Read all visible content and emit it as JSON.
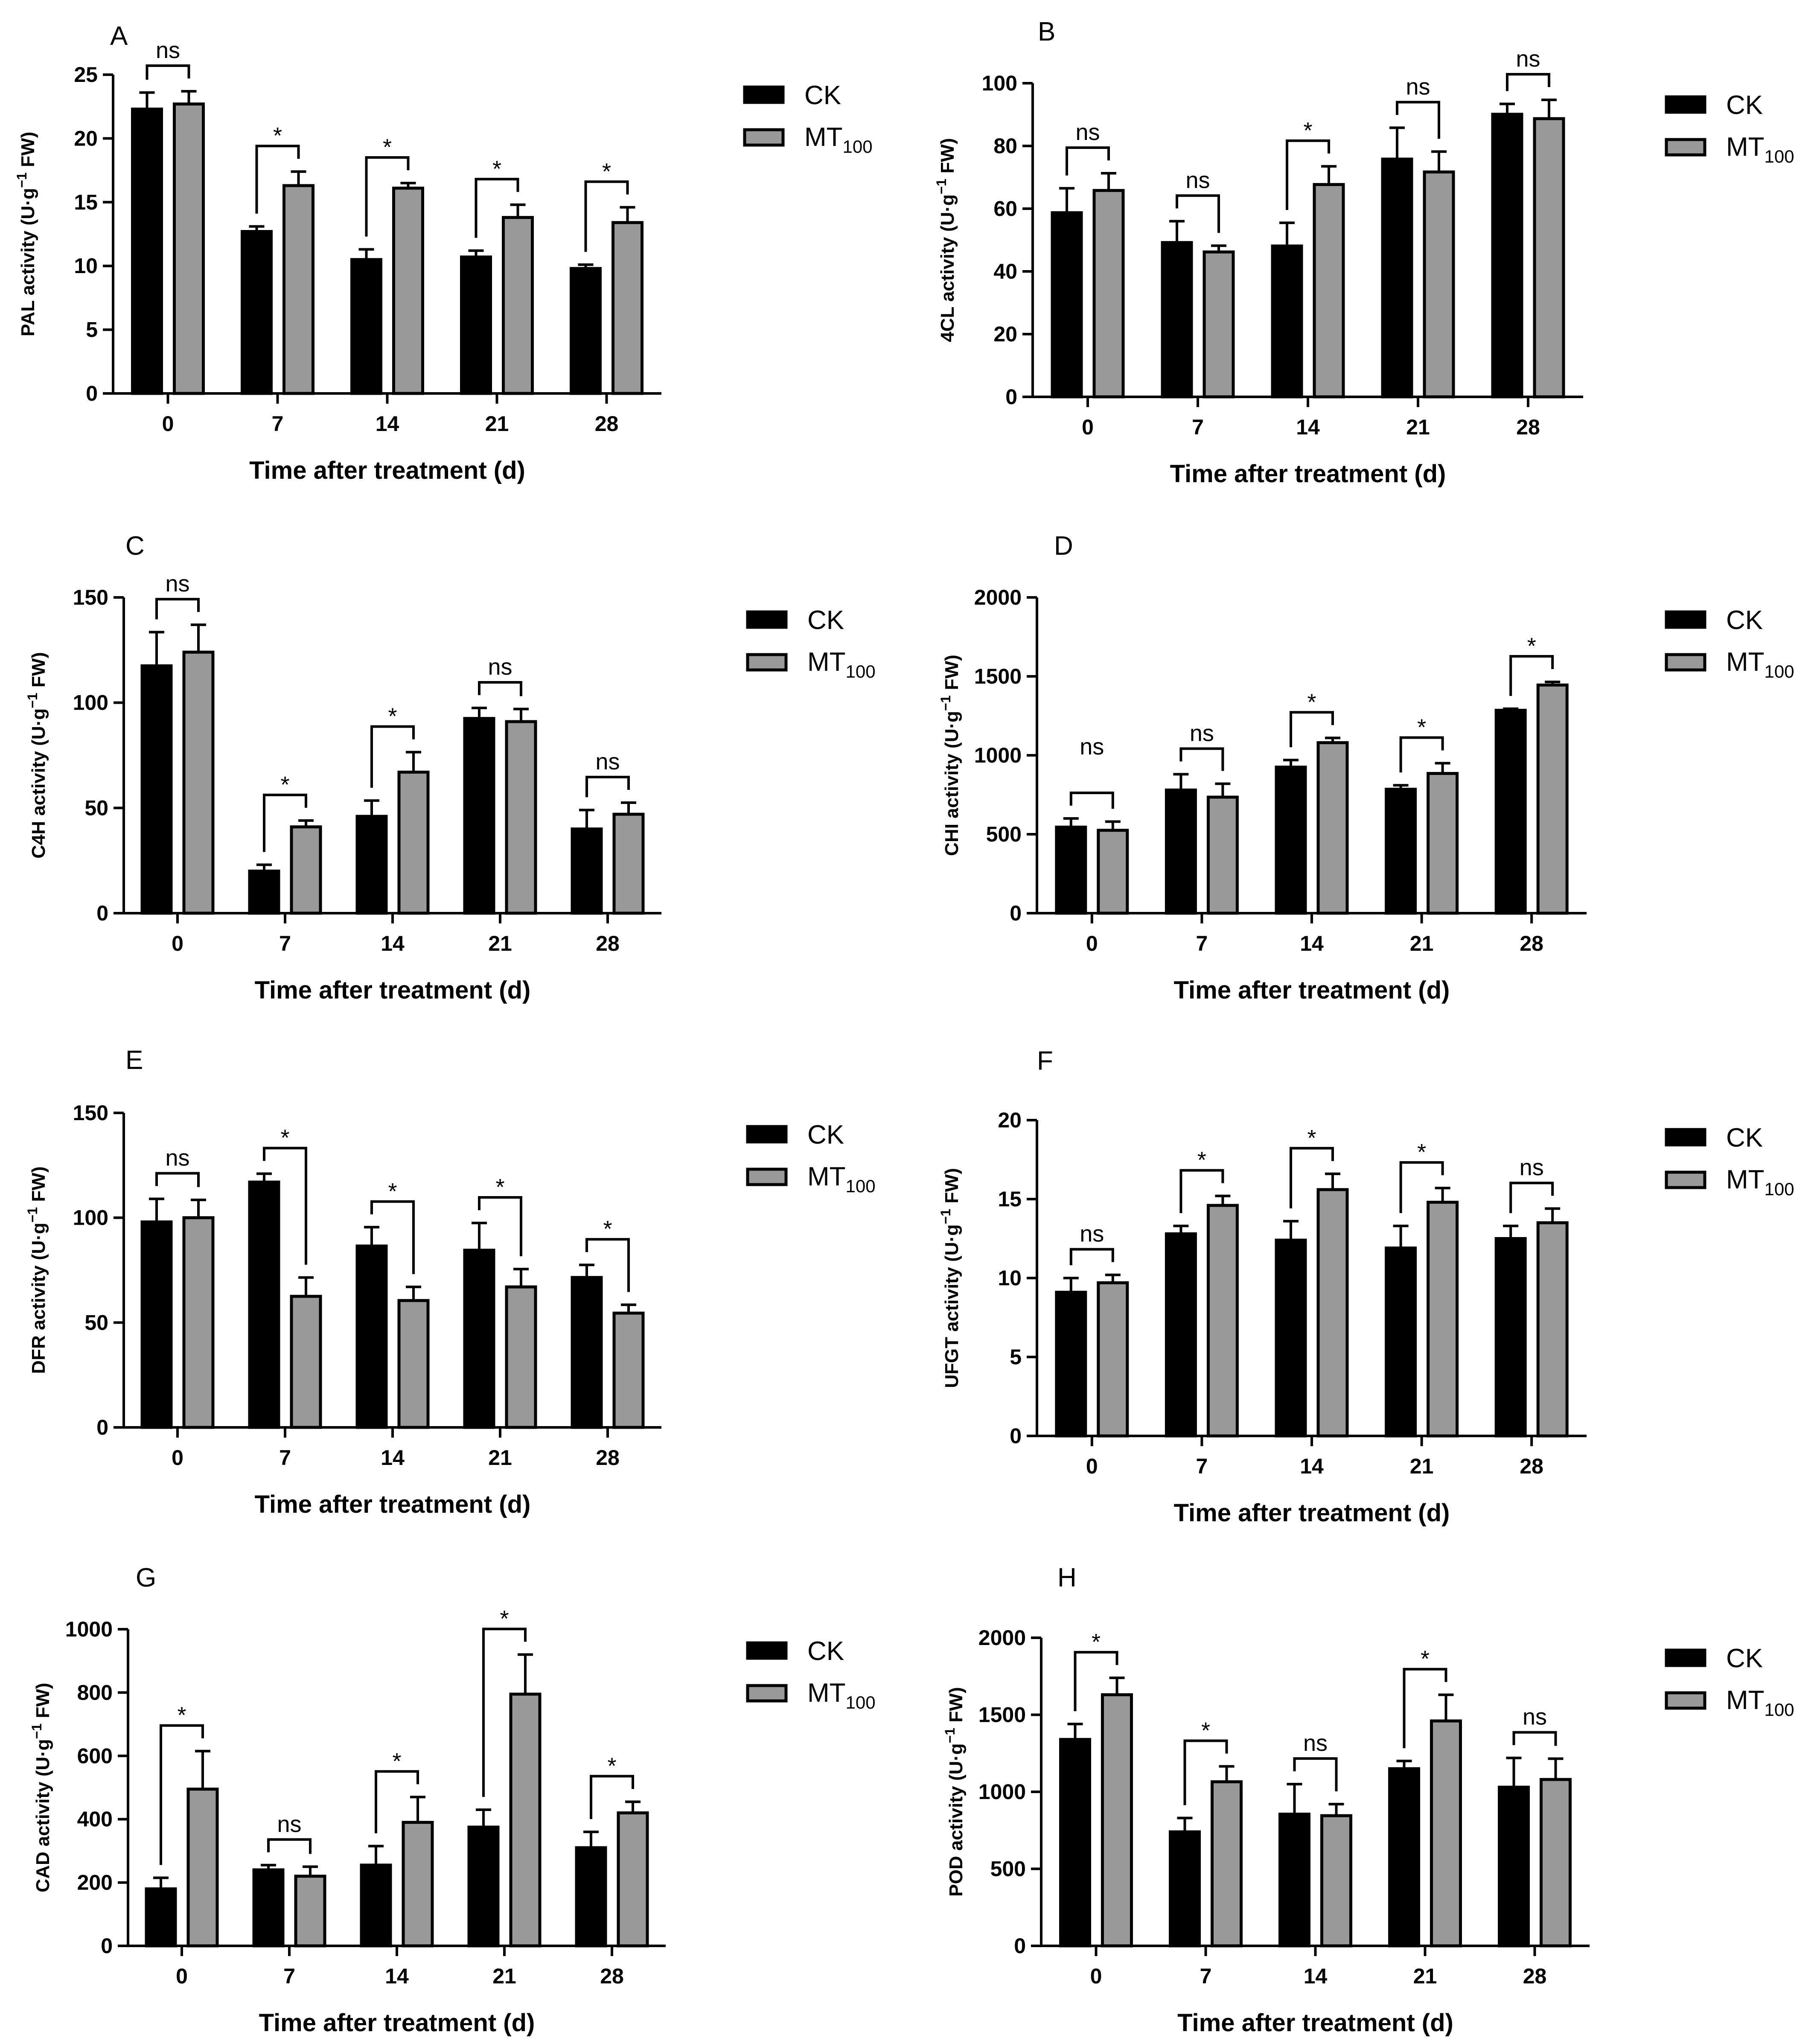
{
  "legend": {
    "ck": {
      "label": "CK",
      "color": "#000000"
    },
    "mt": {
      "label": "MT",
      "sub": "100",
      "color": "#999999"
    }
  },
  "xlabel": "Time after treatment (d)",
  "ylabel_unit": {
    "open": " (U·g",
    "sup": "−1",
    "close": " FW)"
  },
  "chart_data": [
    {
      "type": "bar",
      "panel": "A",
      "ylabel_main": "PAL activity",
      "categories": [
        "0",
        "7",
        "14",
        "21",
        "28"
      ],
      "ylim": [
        0,
        25
      ],
      "yticks": [
        0,
        5,
        10,
        15,
        20,
        25
      ],
      "series": [
        {
          "name": "CK",
          "values": [
            22.3,
            12.7,
            10.5,
            10.7,
            9.8
          ],
          "errors": [
            1.3,
            0.4,
            0.8,
            0.5,
            0.3
          ]
        },
        {
          "name": "MT100",
          "values": [
            22.7,
            16.3,
            16.1,
            13.8,
            13.4
          ],
          "errors": [
            1.0,
            1.1,
            0.4,
            1.0,
            1.2
          ]
        }
      ],
      "significance": [
        {
          "category": "0",
          "label": "ns"
        },
        {
          "category": "7",
          "label": "*"
        },
        {
          "category": "14",
          "label": "*"
        },
        {
          "category": "21",
          "label": "*"
        },
        {
          "category": "28",
          "label": "*"
        }
      ]
    },
    {
      "type": "bar",
      "panel": "B",
      "ylabel_main": "4CL activity",
      "categories": [
        "0",
        "7",
        "14",
        "21",
        "28"
      ],
      "ylim": [
        0,
        100
      ],
      "yticks": [
        0,
        20,
        40,
        60,
        80,
        100
      ],
      "series": [
        {
          "name": "CK",
          "values": [
            58.7,
            49.2,
            48.1,
            75.8,
            90.1
          ],
          "errors": [
            7.8,
            6.8,
            7.4,
            10.0,
            3.3
          ]
        },
        {
          "name": "MT100",
          "values": [
            65.8,
            46.2,
            67.7,
            71.7,
            88.7
          ],
          "errors": [
            5.5,
            2.0,
            5.8,
            6.5,
            6.0
          ]
        }
      ],
      "significance": [
        {
          "category": "0",
          "label": "ns"
        },
        {
          "category": "7",
          "label": "ns"
        },
        {
          "category": "14",
          "label": "*"
        },
        {
          "category": "21",
          "label": "ns"
        },
        {
          "category": "28",
          "label": "ns"
        }
      ]
    },
    {
      "type": "bar",
      "panel": "C",
      "ylabel_main": "C4H activity",
      "categories": [
        "0",
        "7",
        "14",
        "21",
        "28"
      ],
      "ylim": [
        0,
        150
      ],
      "yticks": [
        0,
        50,
        100,
        150
      ],
      "series": [
        {
          "name": "CK",
          "values": [
            117.5,
            20.0,
            46.0,
            92.5,
            40.0
          ],
          "errors": [
            16.0,
            3.0,
            7.5,
            5.0,
            9.0
          ]
        },
        {
          "name": "MT100",
          "values": [
            124.0,
            41.0,
            67.0,
            91.0,
            47.0
          ],
          "errors": [
            13.0,
            3.0,
            9.5,
            6.0,
            5.5
          ]
        }
      ],
      "significance": [
        {
          "category": "0",
          "label": "ns"
        },
        {
          "category": "7",
          "label": "*"
        },
        {
          "category": "14",
          "label": "*"
        },
        {
          "category": "21",
          "label": "ns"
        },
        {
          "category": "28",
          "label": "ns"
        }
      ]
    },
    {
      "type": "bar",
      "panel": "D",
      "ylabel_main": "CHI activity",
      "categories": [
        "0",
        "7",
        "14",
        "21",
        "28"
      ],
      "ylim": [
        0,
        2000
      ],
      "yticks": [
        0,
        500,
        1000,
        1500,
        2000
      ],
      "series": [
        {
          "name": "CK",
          "values": [
            545,
            780,
            925,
            785,
            1285
          ],
          "errors": [
            55,
            100,
            45,
            25,
            10
          ]
        },
        {
          "name": "MT100",
          "values": [
            525,
            735,
            1080,
            885,
            1445
          ],
          "errors": [
            55,
            85,
            30,
            65,
            20
          ]
        }
      ],
      "significance": [
        {
          "category": "0",
          "label": "ns",
          "label_above": true
        },
        {
          "category": "7",
          "label": "ns"
        },
        {
          "category": "14",
          "label": "*"
        },
        {
          "category": "21",
          "label": "*"
        },
        {
          "category": "28",
          "label": "*"
        }
      ]
    },
    {
      "type": "bar",
      "panel": "E",
      "ylabel_main": "DFR activity",
      "categories": [
        "0",
        "7",
        "14",
        "21",
        "28"
      ],
      "ylim": [
        0,
        150
      ],
      "yticks": [
        0,
        50,
        100,
        150
      ],
      "series": [
        {
          "name": "CK",
          "values": [
            98.0,
            117.0,
            86.5,
            84.5,
            71.5
          ],
          "errors": [
            11.0,
            4.0,
            9.0,
            13.0,
            6.0
          ]
        },
        {
          "name": "MT100",
          "values": [
            100.0,
            62.5,
            60.5,
            67.0,
            54.5
          ],
          "errors": [
            8.5,
            9.0,
            6.5,
            8.5,
            4.0
          ]
        }
      ],
      "significance": [
        {
          "category": "0",
          "label": "ns"
        },
        {
          "category": "7",
          "label": "*"
        },
        {
          "category": "14",
          "label": "*"
        },
        {
          "category": "21",
          "label": "*"
        },
        {
          "category": "28",
          "label": "*"
        }
      ]
    },
    {
      "type": "bar",
      "panel": "F",
      "ylabel_main": "UFGT activity",
      "categories": [
        "0",
        "7",
        "14",
        "21",
        "28"
      ],
      "ylim": [
        0,
        20
      ],
      "yticks": [
        0,
        5,
        10,
        15,
        20
      ],
      "series": [
        {
          "name": "CK",
          "values": [
            9.1,
            12.8,
            12.4,
            11.9,
            12.5
          ],
          "errors": [
            0.9,
            0.5,
            1.2,
            1.4,
            0.8
          ]
        },
        {
          "name": "MT100",
          "values": [
            9.7,
            14.6,
            15.6,
            14.8,
            13.5
          ],
          "errors": [
            0.5,
            0.6,
            1.0,
            0.9,
            0.9
          ]
        }
      ],
      "significance": [
        {
          "category": "0",
          "label": "ns"
        },
        {
          "category": "7",
          "label": "*"
        },
        {
          "category": "14",
          "label": "*"
        },
        {
          "category": "21",
          "label": "*"
        },
        {
          "category": "28",
          "label": "ns"
        }
      ]
    },
    {
      "type": "bar",
      "panel": "G",
      "ylabel_main": "CAD activity",
      "categories": [
        "0",
        "7",
        "14",
        "21",
        "28"
      ],
      "ylim": [
        0,
        1000
      ],
      "yticks": [
        0,
        200,
        400,
        600,
        800,
        1000
      ],
      "series": [
        {
          "name": "CK",
          "values": [
            180,
            240,
            255,
            375,
            310
          ],
          "errors": [
            35,
            15,
            60,
            55,
            50
          ]
        },
        {
          "name": "MT100",
          "values": [
            495,
            220,
            390,
            795,
            420
          ],
          "errors": [
            120,
            30,
            80,
            125,
            35
          ]
        }
      ],
      "significance": [
        {
          "category": "0",
          "label": "*"
        },
        {
          "category": "7",
          "label": "ns"
        },
        {
          "category": "14",
          "label": "*"
        },
        {
          "category": "21",
          "label": "*"
        },
        {
          "category": "28",
          "label": "*"
        }
      ]
    },
    {
      "type": "bar",
      "panel": "H",
      "ylabel_main": "POD activity",
      "categories": [
        "0",
        "7",
        "14",
        "21",
        "28"
      ],
      "ylim": [
        0,
        2000
      ],
      "yticks": [
        0,
        500,
        1000,
        1500,
        2000
      ],
      "series": [
        {
          "name": "CK",
          "values": [
            1340,
            740,
            855,
            1150,
            1030
          ],
          "errors": [
            100,
            90,
            195,
            50,
            190
          ]
        },
        {
          "name": "MT100",
          "values": [
            1630,
            1065,
            845,
            1460,
            1080
          ],
          "errors": [
            110,
            100,
            75,
            170,
            135
          ]
        }
      ],
      "significance": [
        {
          "category": "0",
          "label": "*"
        },
        {
          "category": "7",
          "label": "*"
        },
        {
          "category": "14",
          "label": "ns"
        },
        {
          "category": "21",
          "label": "*"
        },
        {
          "category": "28",
          "label": "ns"
        }
      ]
    }
  ]
}
